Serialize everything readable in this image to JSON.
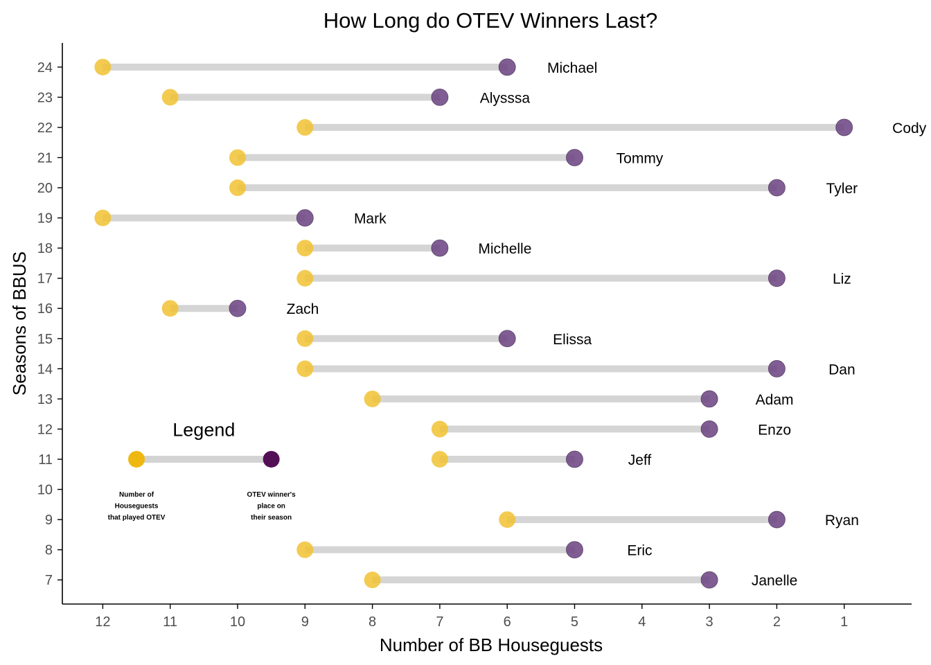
{
  "chart_data": {
    "type": "dumbbell",
    "title": "How Long do OTEV Winners Last?",
    "xlabel": "Number of BB Houseguests",
    "ylabel": "Seasons of BBUS",
    "x_reversed": true,
    "xlim": [
      0.0,
      12.6
    ],
    "ylim": [
      6.2,
      24.8
    ],
    "xticks": [
      12,
      11,
      10,
      9,
      8,
      7,
      6,
      5,
      4,
      3,
      2,
      1
    ],
    "yticks": [
      7,
      8,
      9,
      10,
      11,
      12,
      13,
      14,
      15,
      16,
      17,
      18,
      19,
      20,
      21,
      22,
      23,
      24
    ],
    "colors": {
      "start_point": "#F1C232",
      "end_point": "#6B4381",
      "segment": "#D3D3D3",
      "legend_start": "#EFB810",
      "legend_end": "#520F55",
      "axis": "#000000",
      "tick_text": "#4D4D4D"
    },
    "points": [
      {
        "season": 24,
        "houseguests_at_otev": 12,
        "winner_place": 6,
        "winner": "Michael"
      },
      {
        "season": 23,
        "houseguests_at_otev": 11,
        "winner_place": 7,
        "winner": "Alysssa"
      },
      {
        "season": 22,
        "houseguests_at_otev": 9,
        "winner_place": 1,
        "winner": "Cody"
      },
      {
        "season": 21,
        "houseguests_at_otev": 10,
        "winner_place": 5,
        "winner": "Tommy"
      },
      {
        "season": 20,
        "houseguests_at_otev": 10,
        "winner_place": 2,
        "winner": "Tyler"
      },
      {
        "season": 19,
        "houseguests_at_otev": 12,
        "winner_place": 9,
        "winner": "Mark"
      },
      {
        "season": 18,
        "houseguests_at_otev": 9,
        "winner_place": 7,
        "winner": "Michelle"
      },
      {
        "season": 17,
        "houseguests_at_otev": 9,
        "winner_place": 2,
        "winner": "Liz"
      },
      {
        "season": 16,
        "houseguests_at_otev": 11,
        "winner_place": 10,
        "winner": "Zach"
      },
      {
        "season": 15,
        "houseguests_at_otev": 9,
        "winner_place": 6,
        "winner": "Elissa"
      },
      {
        "season": 14,
        "houseguests_at_otev": 9,
        "winner_place": 2,
        "winner": "Dan"
      },
      {
        "season": 13,
        "houseguests_at_otev": 8,
        "winner_place": 3,
        "winner": "Adam"
      },
      {
        "season": 12,
        "houseguests_at_otev": 7,
        "winner_place": 3,
        "winner": "Enzo"
      },
      {
        "season": 11,
        "houseguests_at_otev": 7,
        "winner_place": 5,
        "winner": "Jeff"
      },
      {
        "season": 9,
        "houseguests_at_otev": 6,
        "winner_place": 2,
        "winner": "Ryan"
      },
      {
        "season": 8,
        "houseguests_at_otev": 9,
        "winner_place": 5,
        "winner": "Eric"
      },
      {
        "season": 7,
        "houseguests_at_otev": 8,
        "winner_place": 3,
        "winner": "Janelle"
      }
    ],
    "legend": {
      "title": "Legend",
      "season": 11,
      "start_x": 11.5,
      "end_x": 9.5,
      "start_text": [
        "Number of",
        "Houseguests",
        "that played OTEV"
      ],
      "end_text": [
        "OTEV winner's",
        "place on",
        "their season"
      ]
    }
  }
}
